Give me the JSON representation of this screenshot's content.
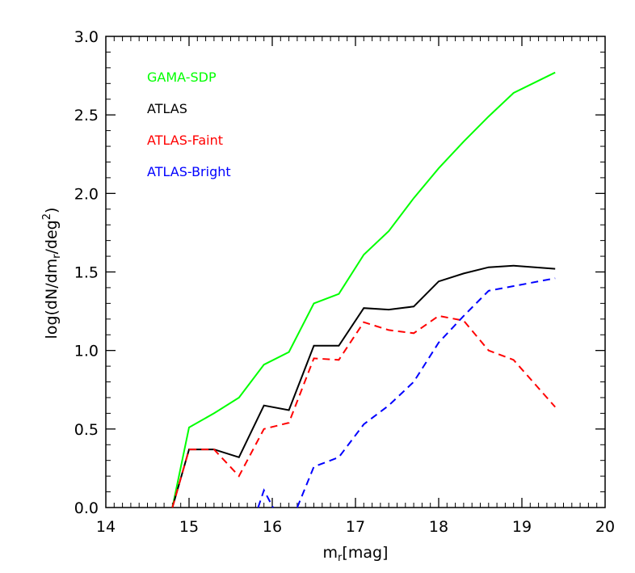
{
  "chart_data": {
    "type": "line",
    "title": "",
    "xlabel": {
      "base": "m",
      "sub": "r",
      "rest": "[mag]"
    },
    "ylabel": {
      "p1": "log(dN/dm",
      "sub": "r",
      "p2": "/deg",
      "sup": "2",
      "p3": ")"
    },
    "xlim": [
      14,
      20
    ],
    "ylim": [
      0,
      3
    ],
    "x_ticks": [
      "14",
      "15",
      "16",
      "17",
      "18",
      "19",
      "20"
    ],
    "y_ticks": [
      "0.0",
      "0.5",
      "1.0",
      "1.5",
      "2.0",
      "2.5",
      "3.0"
    ],
    "grid": false,
    "legend_position": "top-left",
    "series": [
      {
        "name": "GAMA-SDP",
        "color": "#00ff00",
        "dash": "solid",
        "points": [
          [
            14.8,
            0.0
          ],
          [
            15.0,
            0.51
          ],
          [
            15.3,
            0.6
          ],
          [
            15.6,
            0.7
          ],
          [
            15.9,
            0.91
          ],
          [
            16.2,
            0.99
          ],
          [
            16.5,
            1.3
          ],
          [
            16.8,
            1.36
          ],
          [
            17.1,
            1.61
          ],
          [
            17.4,
            1.76
          ],
          [
            17.7,
            1.97
          ],
          [
            18.0,
            2.16
          ],
          [
            18.3,
            2.33
          ],
          [
            18.6,
            2.49
          ],
          [
            18.9,
            2.64
          ],
          [
            19.4,
            2.77
          ]
        ]
      },
      {
        "name": "ATLAS",
        "color": "#000000",
        "dash": "solid",
        "points": [
          [
            14.8,
            0.0
          ],
          [
            15.0,
            0.37
          ],
          [
            15.3,
            0.37
          ],
          [
            15.6,
            0.32
          ],
          [
            15.9,
            0.65
          ],
          [
            16.2,
            0.62
          ],
          [
            16.5,
            1.03
          ],
          [
            16.8,
            1.03
          ],
          [
            17.1,
            1.27
          ],
          [
            17.4,
            1.26
          ],
          [
            17.7,
            1.28
          ],
          [
            18.0,
            1.44
          ],
          [
            18.3,
            1.49
          ],
          [
            18.6,
            1.53
          ],
          [
            18.9,
            1.54
          ],
          [
            19.4,
            1.52
          ]
        ]
      },
      {
        "name": "ATLAS-Faint",
        "color": "#ff0000",
        "dash": "dashed",
        "points": [
          [
            14.8,
            0.0
          ],
          [
            15.0,
            0.37
          ],
          [
            15.3,
            0.37
          ],
          [
            15.6,
            0.2
          ],
          [
            15.9,
            0.5
          ],
          [
            16.2,
            0.54
          ],
          [
            16.5,
            0.95
          ],
          [
            16.8,
            0.94
          ],
          [
            17.1,
            1.18
          ],
          [
            17.4,
            1.13
          ],
          [
            17.7,
            1.11
          ],
          [
            18.0,
            1.22
          ],
          [
            18.3,
            1.19
          ],
          [
            18.6,
            1.0
          ],
          [
            18.9,
            0.94
          ],
          [
            19.4,
            0.64
          ]
        ]
      },
      {
        "name": "ATLAS-Bright",
        "color": "#0000ff",
        "dash": "dashed",
        "points": [
          [
            15.83,
            0.0
          ],
          [
            15.9,
            0.11
          ],
          [
            16.01,
            0.0
          ],
          [
            null,
            null
          ],
          [
            16.3,
            0.0
          ],
          [
            16.5,
            0.26
          ],
          [
            16.8,
            0.32
          ],
          [
            17.1,
            0.53
          ],
          [
            17.4,
            0.65
          ],
          [
            17.7,
            0.8
          ],
          [
            18.0,
            1.05
          ],
          [
            18.3,
            1.22
          ],
          [
            18.6,
            1.38
          ],
          [
            18.9,
            1.41
          ],
          [
            19.4,
            1.46
          ]
        ]
      }
    ]
  }
}
